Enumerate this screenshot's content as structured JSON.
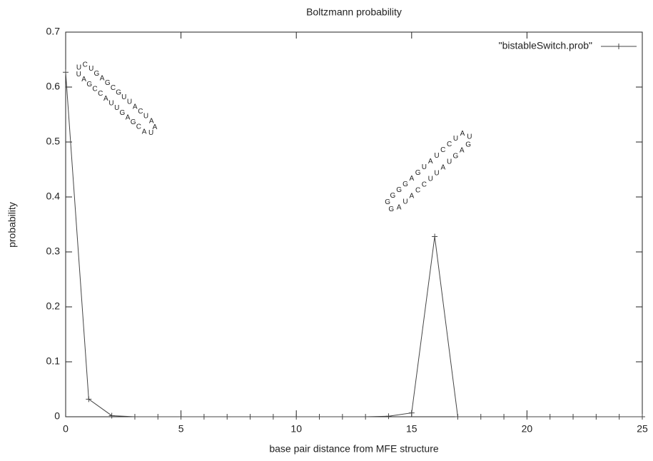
{
  "chart_data": {
    "type": "line",
    "title": "Boltzmann probability",
    "x_label": "base pair distance from MFE structure",
    "y_label": "probability",
    "x": [
      0,
      1,
      2,
      3,
      4,
      5,
      6,
      7,
      8,
      9,
      10,
      11,
      12,
      13,
      14,
      15,
      16,
      17,
      18,
      19,
      20,
      21,
      22,
      23,
      24,
      25
    ],
    "series": [
      {
        "name": "\"bistableSwitch.prob\"",
        "color": "#444444",
        "values": [
          0.627,
          0.032,
          0.002,
          0,
          0,
          0,
          0,
          0,
          0,
          0,
          0,
          0,
          0,
          0,
          0.001,
          0.007,
          0.328,
          0,
          0,
          0,
          0,
          0,
          0,
          0,
          0,
          0
        ]
      }
    ],
    "xlim": [
      0,
      25
    ],
    "xticks": [
      0,
      5,
      10,
      15,
      20,
      25
    ],
    "ylim": [
      0,
      0.7
    ],
    "yticks": [
      0,
      0.1,
      0.2,
      0.3,
      0.4,
      0.5,
      0.6,
      0.7
    ],
    "grid": false,
    "legend": "top-right",
    "annotations": [
      {
        "letters": [
          "U",
          "G",
          "A",
          "G",
          "C",
          "G",
          "U",
          "U",
          "A",
          "C",
          "U",
          "A",
          "A",
          "U",
          "A",
          "C",
          "G",
          "A",
          "G",
          "U",
          "U",
          "A",
          "C",
          "C",
          "G",
          "A",
          "U",
          "U",
          "C"
        ]
      },
      {
        "letters": [
          "G",
          "G",
          "G",
          "A",
          "G",
          "U",
          "A",
          "U",
          "C",
          "C",
          "U",
          "A",
          "U",
          "G",
          "A",
          "G",
          "U",
          "A",
          "U",
          "U",
          "C",
          "C",
          "A",
          "U",
          "A",
          "G",
          "G"
        ]
      }
    ]
  }
}
